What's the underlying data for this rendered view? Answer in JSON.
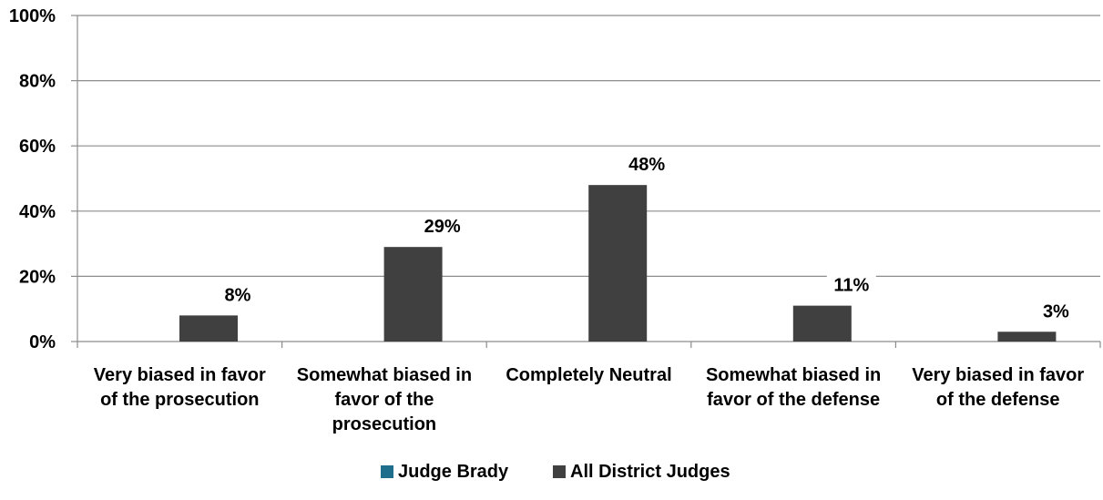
{
  "chart_data": {
    "type": "bar",
    "title": "",
    "xlabel": "",
    "ylabel": "",
    "ylim": [
      0,
      100
    ],
    "y_ticks": [
      "0%",
      "20%",
      "40%",
      "60%",
      "80%",
      "100%"
    ],
    "y_tick_values": [
      0,
      20,
      40,
      60,
      80,
      100
    ],
    "grid": true,
    "legend_position": "bottom",
    "categories": [
      [
        "Very biased in favor",
        "of the prosecution"
      ],
      [
        "Somewhat biased in",
        "favor of the",
        "prosecution"
      ],
      [
        "Completely Neutral"
      ],
      [
        "Somewhat biased in",
        "favor of the defense"
      ],
      [
        "Very biased in favor",
        "of the defense"
      ]
    ],
    "series": [
      {
        "name": "Judge Brady",
        "color": "#1F6E8C",
        "values": [
          null,
          null,
          null,
          null,
          null
        ],
        "labels": [
          "",
          "",
          "",
          "",
          ""
        ]
      },
      {
        "name": "All District Judges",
        "color": "#404040",
        "values": [
          8,
          29,
          48,
          11,
          3
        ],
        "labels": [
          "8%",
          "29%",
          "48%",
          "11%",
          "3%"
        ]
      }
    ]
  }
}
